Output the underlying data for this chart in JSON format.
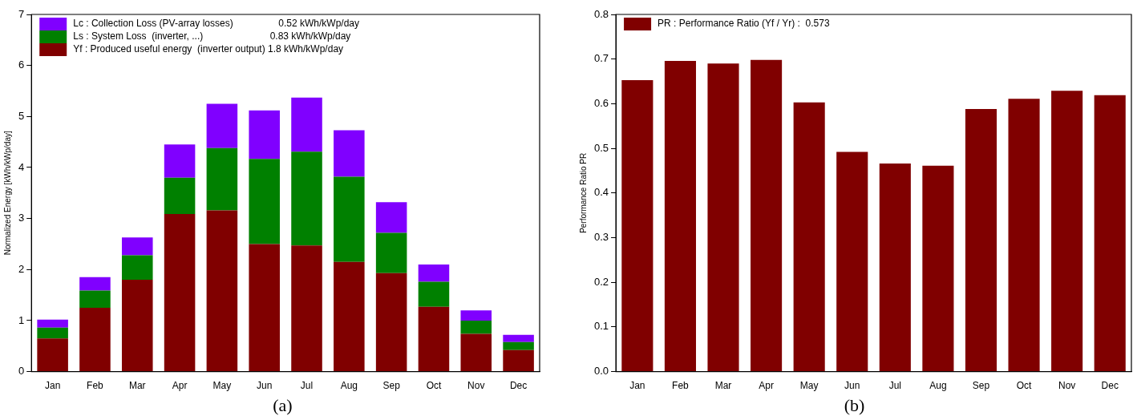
{
  "chart_data": [
    {
      "type": "bar",
      "ylabel": "Normalized Energy [kWh/kWp/day]",
      "annotations": [
        "(a)"
      ],
      "categories": [
        "Jan",
        "Feb",
        "Mar",
        "Apr",
        "May",
        "Jun",
        "Jul",
        "Aug",
        "Sep",
        "Oct",
        "Nov",
        "Dec"
      ],
      "stacked": true,
      "legend": "top left",
      "grid": false,
      "ylim": [
        0,
        7
      ],
      "yticks": [
        0,
        1,
        2,
        3,
        4,
        5,
        6,
        7
      ],
      "series": [
        {
          "name": "Yf : Produced useful energy  (inverter output) 1.8 kWh/kWp/day",
          "color": "#800000",
          "values": [
            0.65,
            1.25,
            1.8,
            3.09,
            3.16,
            2.5,
            2.47,
            2.15,
            1.93,
            1.27,
            0.74,
            0.42
          ]
        },
        {
          "name": "Ls : System Loss  (inverter, ...)                         0.83 kWh/kWp/day",
          "color": "#008000",
          "values": [
            0.21,
            0.34,
            0.48,
            0.71,
            1.22,
            1.67,
            1.84,
            1.67,
            0.79,
            0.49,
            0.26,
            0.16
          ]
        },
        {
          "name": "Lc : Collection Loss (PV-array losses)                 0.52 kWh/kWp/day",
          "color": "#8000ff",
          "values": [
            0.16,
            0.26,
            0.35,
            0.65,
            0.87,
            0.95,
            1.06,
            0.91,
            0.6,
            0.34,
            0.2,
            0.14
          ]
        }
      ]
    },
    {
      "type": "bar",
      "ylabel": "Performance Ratio PR",
      "annotations": [
        "(b)"
      ],
      "categories": [
        "Jan",
        "Feb",
        "Mar",
        "Apr",
        "May",
        "Jun",
        "Jul",
        "Aug",
        "Sep",
        "Oct",
        "Nov",
        "Dec"
      ],
      "legend": "top left",
      "grid": false,
      "ylim": [
        0,
        0.8
      ],
      "yticks": [
        {
          "value": 0,
          "label": "0.0"
        },
        0.1,
        0.2,
        0.3,
        0.4,
        0.5,
        0.6,
        0.7,
        0.8
      ],
      "series": [
        {
          "name": "PR : Performance Ratio (Yf / Yr) :  0.573",
          "color": "#800000",
          "values": [
            0.653,
            0.696,
            0.69,
            0.698,
            0.603,
            0.492,
            0.466,
            0.461,
            0.588,
            0.611,
            0.629,
            0.619
          ]
        }
      ]
    }
  ]
}
